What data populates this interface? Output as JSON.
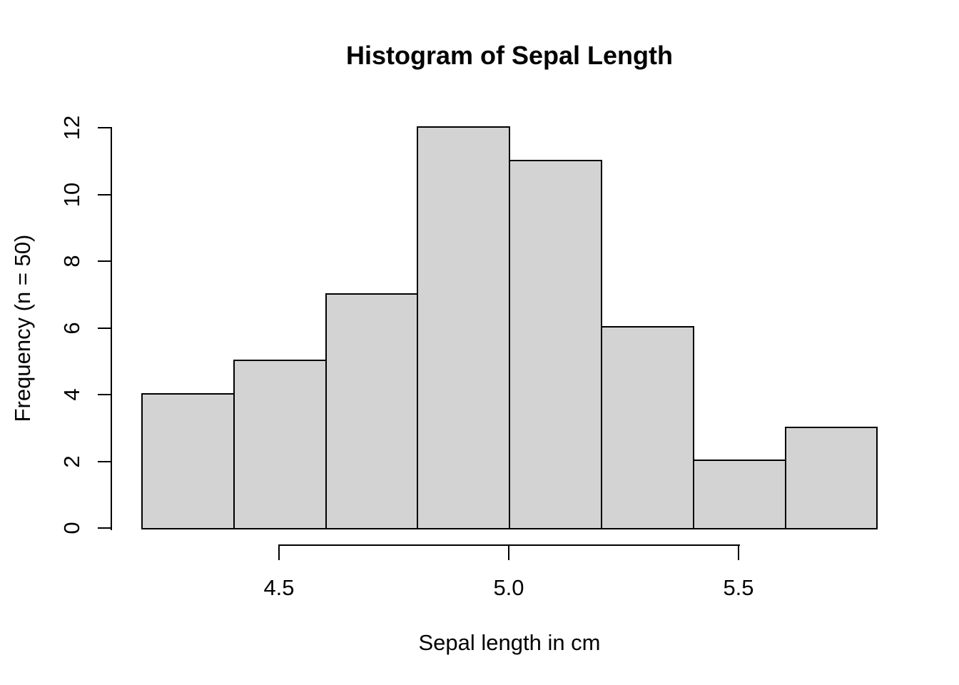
{
  "chart_data": {
    "type": "bar",
    "subtype": "histogram",
    "title": "Histogram of Sepal Length",
    "xlabel": "Sepal length in cm",
    "ylabel": "Frequency (n = 50)",
    "n": 50,
    "bin_edges": [
      4.2,
      4.4,
      4.6,
      4.8,
      5.0,
      5.2,
      5.4,
      5.6,
      5.8
    ],
    "counts": [
      4,
      5,
      7,
      12,
      11,
      6,
      2,
      3
    ],
    "x_ticks": [
      4.5,
      5.0,
      5.5
    ],
    "x_tick_labels": [
      "4.5",
      "5.0",
      "5.5"
    ],
    "y_ticks": [
      0,
      2,
      4,
      6,
      8,
      10,
      12
    ],
    "y_tick_labels": [
      "0",
      "2",
      "4",
      "6",
      "8",
      "10",
      "12"
    ],
    "xlim": [
      4.2,
      5.8
    ],
    "ylim": [
      0,
      12
    ],
    "grid": false,
    "legend": false,
    "colors": {
      "bar_fill": "#d3d3d3",
      "bar_border": "#000000",
      "axis": "#000000",
      "text": "#000000",
      "background": "#ffffff"
    }
  }
}
